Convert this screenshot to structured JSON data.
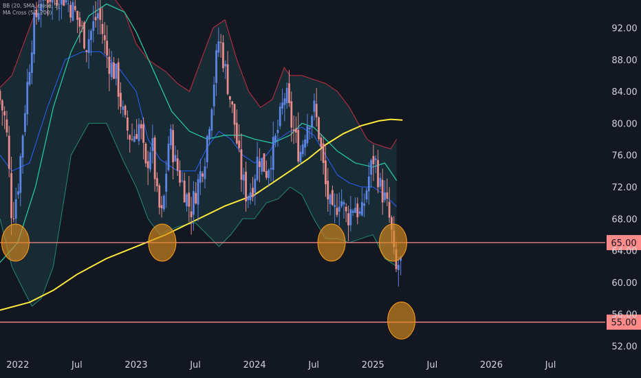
{
  "legend": {
    "bb": "BB (20, SMA, close, 3)",
    "ma_cross": "MA Cross (50, 200)"
  },
  "colors": {
    "background": "#131722",
    "up_candle": "#5b86e5",
    "down_candle": "#e88c8c",
    "bb_basis": "#2962ff",
    "bb_upper": "#c62f45",
    "bb_lower": "#1f8a72",
    "bb_fill": "#1d3a44",
    "ma50": "#26c6a0",
    "ma200": "#ffeb3b",
    "h_line": "#ff8a8a",
    "circle_fill": "#d88a1f",
    "circle_stroke": "#ff9f1c",
    "axis_text": "#d1d4dc"
  },
  "chart_data": {
    "type": "candlestick",
    "y_ticks": [
      "92.00",
      "88.00",
      "84.00",
      "80.00",
      "76.00",
      "72.00",
      "68.00",
      "64.00",
      "60.00",
      "56.00",
      "52.00"
    ],
    "ylim": [
      51,
      95.5
    ],
    "x_ticks": [
      "2022",
      "Jul",
      "2023",
      "Jul",
      "2024",
      "Jul",
      "2025",
      "Jul",
      "2026",
      "Jul"
    ],
    "x_tick_dates": [
      2022.0,
      2022.5,
      2023.0,
      2023.5,
      2024.0,
      2024.5,
      2025.0,
      2025.5,
      2026.0,
      2026.5
    ],
    "xlim": [
      2021.85,
      2026.95
    ],
    "horizontal_levels": [
      {
        "label": "65.00",
        "value": 65.0
      },
      {
        "label": "55.00",
        "value": 55.0
      }
    ],
    "highlight_circles": [
      {
        "date": 2021.98,
        "value": 65.0
      },
      {
        "date": 2023.22,
        "value": 65.0
      },
      {
        "date": 2024.65,
        "value": 65.0
      },
      {
        "date": 2025.17,
        "value": 65.0
      },
      {
        "date": 2025.24,
        "value": 55.2
      }
    ],
    "ma200": [
      [
        2021.85,
        56.5
      ],
      [
        2022.1,
        57.5
      ],
      [
        2022.3,
        59.0
      ],
      [
        2022.5,
        61.0
      ],
      [
        2022.75,
        63.0
      ],
      [
        2023.0,
        64.5
      ],
      [
        2023.25,
        66.0
      ],
      [
        2023.5,
        67.8
      ],
      [
        2023.75,
        69.6
      ],
      [
        2024.0,
        71.0
      ],
      [
        2024.15,
        72.5
      ],
      [
        2024.3,
        74.0
      ],
      [
        2024.45,
        75.5
      ],
      [
        2024.6,
        77.3
      ],
      [
        2024.75,
        78.7
      ],
      [
        2024.9,
        79.7
      ],
      [
        2025.05,
        80.3
      ],
      [
        2025.15,
        80.5
      ],
      [
        2025.25,
        80.4
      ]
    ],
    "ma50": [
      [
        2021.85,
        62.5
      ],
      [
        2022.0,
        65.0
      ],
      [
        2022.15,
        72.0
      ],
      [
        2022.3,
        82.0
      ],
      [
        2022.45,
        89.0
      ],
      [
        2022.6,
        93.5
      ],
      [
        2022.75,
        95.0
      ],
      [
        2022.9,
        94.0
      ],
      [
        2023.0,
        91.5
      ],
      [
        2023.15,
        86.5
      ],
      [
        2023.3,
        81.5
      ],
      [
        2023.45,
        79.0
      ],
      [
        2023.6,
        78.0
      ],
      [
        2023.75,
        78.5
      ],
      [
        2023.9,
        78.5
      ],
      [
        2024.0,
        78.0
      ],
      [
        2024.15,
        77.5
      ],
      [
        2024.3,
        78.5
      ],
      [
        2024.4,
        80.0
      ],
      [
        2024.5,
        79.5
      ],
      [
        2024.6,
        78.0
      ],
      [
        2024.7,
        76.5
      ],
      [
        2024.85,
        75.0
      ],
      [
        2025.0,
        74.5
      ],
      [
        2025.1,
        75.0
      ],
      [
        2025.2,
        72.8
      ]
    ],
    "bb_upper": [
      [
        2021.85,
        84.5
      ],
      [
        2021.95,
        86.0
      ],
      [
        2022.1,
        92.0
      ],
      [
        2022.2,
        96.0
      ],
      [
        2022.8,
        96.0
      ],
      [
        2022.9,
        94.0
      ],
      [
        2023.0,
        90.0
      ],
      [
        2023.1,
        88.0
      ],
      [
        2023.25,
        86.5
      ],
      [
        2023.35,
        85.0
      ],
      [
        2023.45,
        84.0
      ],
      [
        2023.55,
        88.0
      ],
      [
        2023.65,
        92.0
      ],
      [
        2023.75,
        93.0
      ],
      [
        2023.85,
        88.0
      ],
      [
        2023.95,
        84.0
      ],
      [
        2024.05,
        82.0
      ],
      [
        2024.15,
        83.0
      ],
      [
        2024.25,
        87.0
      ],
      [
        2024.3,
        86.0
      ],
      [
        2024.4,
        86.0
      ],
      [
        2024.5,
        85.5
      ],
      [
        2024.6,
        85.0
      ],
      [
        2024.7,
        84.0
      ],
      [
        2024.8,
        82.0
      ],
      [
        2024.95,
        78.0
      ],
      [
        2025.0,
        77.5
      ],
      [
        2025.1,
        77.0
      ],
      [
        2025.15,
        76.8
      ],
      [
        2025.2,
        78.0
      ]
    ],
    "bb_lower": [
      [
        2021.85,
        68.0
      ],
      [
        2021.95,
        62.0
      ],
      [
        2022.05,
        59.0
      ],
      [
        2022.12,
        57.0
      ],
      [
        2022.2,
        58.0
      ],
      [
        2022.3,
        62.0
      ],
      [
        2022.45,
        76.0
      ],
      [
        2022.6,
        80.0
      ],
      [
        2022.75,
        80.0
      ],
      [
        2022.9,
        75.0
      ],
      [
        2023.0,
        72.0
      ],
      [
        2023.1,
        68.0
      ],
      [
        2023.2,
        66.0
      ],
      [
        2023.35,
        67.0
      ],
      [
        2023.5,
        67.5
      ],
      [
        2023.6,
        66.0
      ],
      [
        2023.7,
        64.5
      ],
      [
        2023.8,
        66.0
      ],
      [
        2023.9,
        68.0
      ],
      [
        2024.0,
        68.0
      ],
      [
        2024.1,
        70.0
      ],
      [
        2024.2,
        70.5
      ],
      [
        2024.3,
        72.0
      ],
      [
        2024.4,
        71.0
      ],
      [
        2024.5,
        68.0
      ],
      [
        2024.6,
        65.5
      ],
      [
        2024.7,
        65.5
      ],
      [
        2024.8,
        65.0
      ],
      [
        2024.9,
        65.5
      ],
      [
        2025.0,
        66.0
      ],
      [
        2025.1,
        63.0
      ],
      [
        2025.2,
        62.0
      ]
    ],
    "bb_basis": [
      [
        2021.85,
        76.0
      ],
      [
        2021.95,
        74.0
      ],
      [
        2022.1,
        75.0
      ],
      [
        2022.25,
        82.0
      ],
      [
        2022.4,
        88.0
      ],
      [
        2022.55,
        89.0
      ],
      [
        2022.7,
        89.0
      ],
      [
        2022.85,
        87.0
      ],
      [
        2023.0,
        84.0
      ],
      [
        2023.1,
        78.0
      ],
      [
        2023.2,
        75.5
      ],
      [
        2023.35,
        74.0
      ],
      [
        2023.5,
        74.0
      ],
      [
        2023.6,
        77.0
      ],
      [
        2023.7,
        79.0
      ],
      [
        2023.8,
        78.0
      ],
      [
        2023.9,
        76.0
      ],
      [
        2024.0,
        75.0
      ],
      [
        2024.1,
        76.0
      ],
      [
        2024.2,
        78.0
      ],
      [
        2024.3,
        79.0
      ],
      [
        2024.4,
        79.5
      ],
      [
        2024.5,
        78.5
      ],
      [
        2024.6,
        76.0
      ],
      [
        2024.7,
        73.5
      ],
      [
        2024.8,
        72.5
      ],
      [
        2024.9,
        72.0
      ],
      [
        2025.0,
        72.0
      ],
      [
        2025.1,
        71.0
      ],
      [
        2025.2,
        69.5
      ]
    ],
    "price_path": [
      [
        2021.85,
        84.0
      ],
      [
        2021.92,
        80.0
      ],
      [
        2021.97,
        68.0
      ],
      [
        2022.02,
        72.0
      ],
      [
        2022.08,
        82.0
      ],
      [
        2022.15,
        92.0
      ],
      [
        2022.22,
        96.0
      ],
      [
        2022.4,
        96.0
      ],
      [
        2022.5,
        94.0
      ],
      [
        2022.6,
        90.0
      ],
      [
        2022.7,
        94.0
      ],
      [
        2022.78,
        88.0
      ],
      [
        2022.85,
        86.0
      ],
      [
        2022.92,
        80.0
      ],
      [
        2022.98,
        78.0
      ],
      [
        2023.05,
        80.0
      ],
      [
        2023.1,
        74.0
      ],
      [
        2023.15,
        78.0
      ],
      [
        2023.2,
        70.0
      ],
      [
        2023.24,
        68.0
      ],
      [
        2023.3,
        79.0
      ],
      [
        2023.35,
        75.0
      ],
      [
        2023.42,
        72.0
      ],
      [
        2023.48,
        69.0
      ],
      [
        2023.55,
        73.0
      ],
      [
        2023.6,
        76.0
      ],
      [
        2023.65,
        82.0
      ],
      [
        2023.72,
        91.0
      ],
      [
        2023.78,
        86.0
      ],
      [
        2023.85,
        80.0
      ],
      [
        2023.9,
        74.0
      ],
      [
        2023.95,
        71.0
      ],
      [
        2024.0,
        72.0
      ],
      [
        2024.05,
        76.0
      ],
      [
        2024.12,
        74.0
      ],
      [
        2024.2,
        78.0
      ],
      [
        2024.28,
        84.0
      ],
      [
        2024.33,
        80.0
      ],
      [
        2024.4,
        76.0
      ],
      [
        2024.46,
        80.0
      ],
      [
        2024.52,
        82.0
      ],
      [
        2024.56,
        79.0
      ],
      [
        2024.62,
        72.0
      ],
      [
        2024.68,
        68.0
      ],
      [
        2024.74,
        71.0
      ],
      [
        2024.8,
        68.0
      ],
      [
        2024.86,
        70.0
      ],
      [
        2024.92,
        68.0
      ],
      [
        2024.98,
        73.0
      ],
      [
        2025.03,
        76.0
      ],
      [
        2025.08,
        72.0
      ],
      [
        2025.13,
        70.0
      ],
      [
        2025.17,
        67.0
      ],
      [
        2025.21,
        61.0
      ],
      [
        2025.24,
        62.5
      ]
    ]
  }
}
